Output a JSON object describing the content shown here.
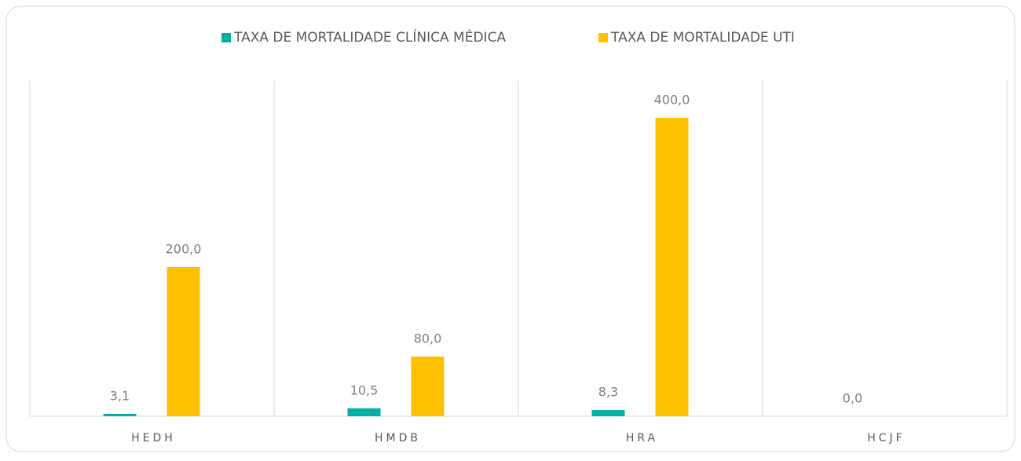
{
  "chart_data": {
    "type": "bar",
    "categories": [
      "HEDH",
      "HMDB",
      "HRA",
      "HCJF"
    ],
    "series": [
      {
        "name": "TAXA DE MORTALIDADE CLÍNICA MÉDICA",
        "color": "#00b0a8",
        "values": [
          3.1,
          10.5,
          8.3,
          0
        ],
        "value_labels": [
          "3,1",
          "10,5",
          "8,3",
          "0,0"
        ]
      },
      {
        "name": "TAXA DE MORTALIDADE UTI",
        "color": "#ffc000",
        "values": [
          200,
          80,
          400,
          null
        ],
        "value_labels": [
          "200,0",
          "80,0",
          "400,0",
          null
        ]
      }
    ],
    "ylim": [
      0,
      450
    ]
  }
}
